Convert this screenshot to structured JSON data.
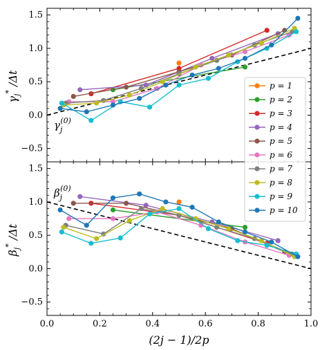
{
  "chart_data": [
    {
      "type": "line",
      "panel": "top",
      "ylabel": "γj* / Δt",
      "xlim": [
        0.0,
        1.0
      ],
      "ylim": [
        -0.7,
        1.6
      ],
      "yticks": [
        "−0.5",
        "0.0",
        "0.5",
        "1.0",
        "1.5"
      ],
      "ytick_values": [
        -0.5,
        0.0,
        0.5,
        1.0,
        1.5
      ],
      "annotation": "γj(0)",
      "reference_line": {
        "style": "dashed",
        "x": [
          0.0,
          1.0
        ],
        "y": [
          0.0,
          1.0
        ]
      },
      "series": [
        {
          "name": "p = 1",
          "color": "#ff7f0e",
          "x": [
            0.5
          ],
          "y": [
            0.78
          ]
        },
        {
          "name": "p = 2",
          "color": "#2ca02c",
          "x": [
            0.25,
            0.75
          ],
          "y": [
            0.38,
            0.72
          ]
        },
        {
          "name": "p = 3",
          "color": "#d62728",
          "x": [
            0.167,
            0.5,
            0.833
          ],
          "y": [
            0.32,
            0.7,
            1.27
          ]
        },
        {
          "name": "p = 4",
          "color": "#9467bd",
          "x": [
            0.125,
            0.375,
            0.625,
            0.875
          ],
          "y": [
            0.38,
            0.45,
            0.85,
            1.22
          ]
        },
        {
          "name": "p = 5",
          "color": "#8c564b",
          "x": [
            0.1,
            0.3,
            0.5,
            0.7,
            0.9
          ],
          "y": [
            0.28,
            0.42,
            0.65,
            0.9,
            1.27
          ]
        },
        {
          "name": "p = 6",
          "color": "#e377c2",
          "x": [
            0.083,
            0.25,
            0.417,
            0.583,
            0.75,
            0.917
          ],
          "y": [
            0.2,
            0.2,
            0.4,
            0.75,
            0.95,
            1.2
          ]
        },
        {
          "name": "p = 7",
          "color": "#7f7f7f",
          "x": [
            0.071,
            0.214,
            0.357,
            0.5,
            0.643,
            0.786,
            0.929
          ],
          "y": [
            0.18,
            0.22,
            0.4,
            0.62,
            0.82,
            1.05,
            1.25
          ]
        },
        {
          "name": "p = 8",
          "color": "#bcbd22",
          "x": [
            0.0625,
            0.1875,
            0.3125,
            0.4375,
            0.5625,
            0.6875,
            0.8125,
            0.9375
          ],
          "y": [
            0.15,
            0.18,
            0.3,
            0.5,
            0.72,
            0.9,
            1.08,
            1.3
          ]
        },
        {
          "name": "p = 9",
          "color": "#17becf",
          "x": [
            0.056,
            0.167,
            0.278,
            0.389,
            0.5,
            0.611,
            0.722,
            0.833,
            0.944
          ],
          "y": [
            0.18,
            -0.08,
            0.2,
            0.12,
            0.45,
            0.55,
            0.8,
            1.0,
            1.25
          ]
        },
        {
          "name": "p = 10",
          "color": "#1f77b4",
          "x": [
            0.05,
            0.15,
            0.25,
            0.35,
            0.45,
            0.55,
            0.65,
            0.75,
            0.85,
            0.95
          ],
          "y": [
            0.1,
            0.05,
            0.15,
            0.25,
            0.45,
            0.6,
            0.7,
            0.85,
            1.05,
            1.45
          ]
        }
      ]
    },
    {
      "type": "line",
      "panel": "bottom",
      "ylabel": "βj* / Δt",
      "xlabel": "(2j − 1)/2p",
      "xlim": [
        0.0,
        1.0
      ],
      "ylim": [
        -0.7,
        1.6
      ],
      "xticks": [
        "0.0",
        "0.2",
        "0.4",
        "0.6",
        "0.8",
        "1.0"
      ],
      "xtick_values": [
        0.0,
        0.2,
        0.4,
        0.6,
        0.8,
        1.0
      ],
      "yticks": [
        "−0.5",
        "0.0",
        "0.5",
        "1.0",
        "1.5"
      ],
      "ytick_values": [
        -0.5,
        0.0,
        0.5,
        1.0,
        1.5
      ],
      "annotation": "βj(0)",
      "reference_line": {
        "style": "dashed",
        "x": [
          0.0,
          1.0
        ],
        "y": [
          1.0,
          0.0
        ]
      },
      "series": [
        {
          "name": "p = 1",
          "color": "#ff7f0e",
          "x": [
            0.5
          ],
          "y": [
            1.0
          ]
        },
        {
          "name": "p = 2",
          "color": "#2ca02c",
          "x": [
            0.25,
            0.75
          ],
          "y": [
            0.88,
            0.62
          ]
        },
        {
          "name": "p = 3",
          "color": "#d62728",
          "x": [
            0.167,
            0.5,
            0.833
          ],
          "y": [
            0.98,
            0.8,
            0.38
          ]
        },
        {
          "name": "p = 4",
          "color": "#9467bd",
          "x": [
            0.125,
            0.375,
            0.625,
            0.875
          ],
          "y": [
            1.08,
            0.95,
            0.7,
            0.42
          ]
        },
        {
          "name": "p = 5",
          "color": "#8c564b",
          "x": [
            0.1,
            0.3,
            0.5,
            0.7,
            0.9
          ],
          "y": [
            0.98,
            0.98,
            0.8,
            0.6,
            0.25
          ]
        },
        {
          "name": "p = 6",
          "color": "#e377c2",
          "x": [
            0.083,
            0.25,
            0.417,
            0.583,
            0.75,
            0.917
          ],
          "y": [
            0.75,
            0.75,
            0.85,
            0.65,
            0.4,
            0.2
          ]
        },
        {
          "name": "p = 7",
          "color": "#7f7f7f",
          "x": [
            0.071,
            0.214,
            0.357,
            0.5,
            0.643,
            0.786,
            0.929
          ],
          "y": [
            0.65,
            0.52,
            0.9,
            0.8,
            0.62,
            0.45,
            0.22
          ]
        },
        {
          "name": "p = 8",
          "color": "#bcbd22",
          "x": [
            0.0625,
            0.1875,
            0.3125,
            0.4375,
            0.5625,
            0.6875,
            0.8125,
            0.9375
          ],
          "y": [
            0.62,
            0.45,
            0.72,
            0.9,
            0.75,
            0.6,
            0.42,
            0.18
          ]
        },
        {
          "name": "p = 9",
          "color": "#17becf",
          "x": [
            0.056,
            0.167,
            0.278,
            0.389,
            0.5,
            0.611,
            0.722,
            0.833,
            0.944
          ],
          "y": [
            0.55,
            0.38,
            0.46,
            0.82,
            0.9,
            0.6,
            0.42,
            0.35,
            0.22
          ]
        },
        {
          "name": "p = 10",
          "color": "#1f77b4",
          "x": [
            0.05,
            0.15,
            0.25,
            0.35,
            0.45,
            0.55,
            0.65,
            0.75,
            0.85,
            0.95
          ],
          "y": [
            0.88,
            0.65,
            1.06,
            1.12,
            1.0,
            0.92,
            0.7,
            0.55,
            0.4,
            0.18
          ]
        }
      ]
    }
  ],
  "legend": {
    "placement": "right, spanning both panels",
    "entries": [
      "p = 1",
      "p = 2",
      "p = 3",
      "p = 4",
      "p = 5",
      "p = 6",
      "p = 7",
      "p = 8",
      "p = 9",
      "p = 10"
    ]
  }
}
